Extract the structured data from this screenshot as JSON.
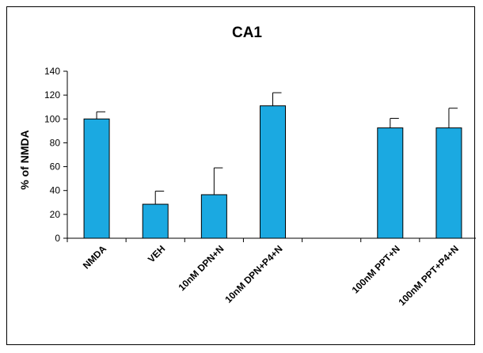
{
  "chart_data": {
    "type": "bar",
    "title": "CA1",
    "xlabel": "",
    "ylabel": "% of NMDA",
    "ylim": [
      0,
      140
    ],
    "yticks": [
      0,
      20,
      40,
      60,
      80,
      100,
      120,
      140
    ],
    "grid": false,
    "legend": "none",
    "categories": [
      "NMDA",
      "VEH",
      "10nM DPN+N",
      "10nM DPN+P4+N",
      "",
      "100nM PPT+N",
      "100nM PPT+P4+N"
    ],
    "values": [
      100,
      28.5,
      36.5,
      111,
      null,
      92.5,
      92.5
    ],
    "error": [
      6,
      11,
      22.5,
      11,
      null,
      8,
      16.5
    ],
    "colors": {
      "bar_fill": "#1BA9E1",
      "bar_stroke": "#000000",
      "axis": "#000000"
    }
  }
}
